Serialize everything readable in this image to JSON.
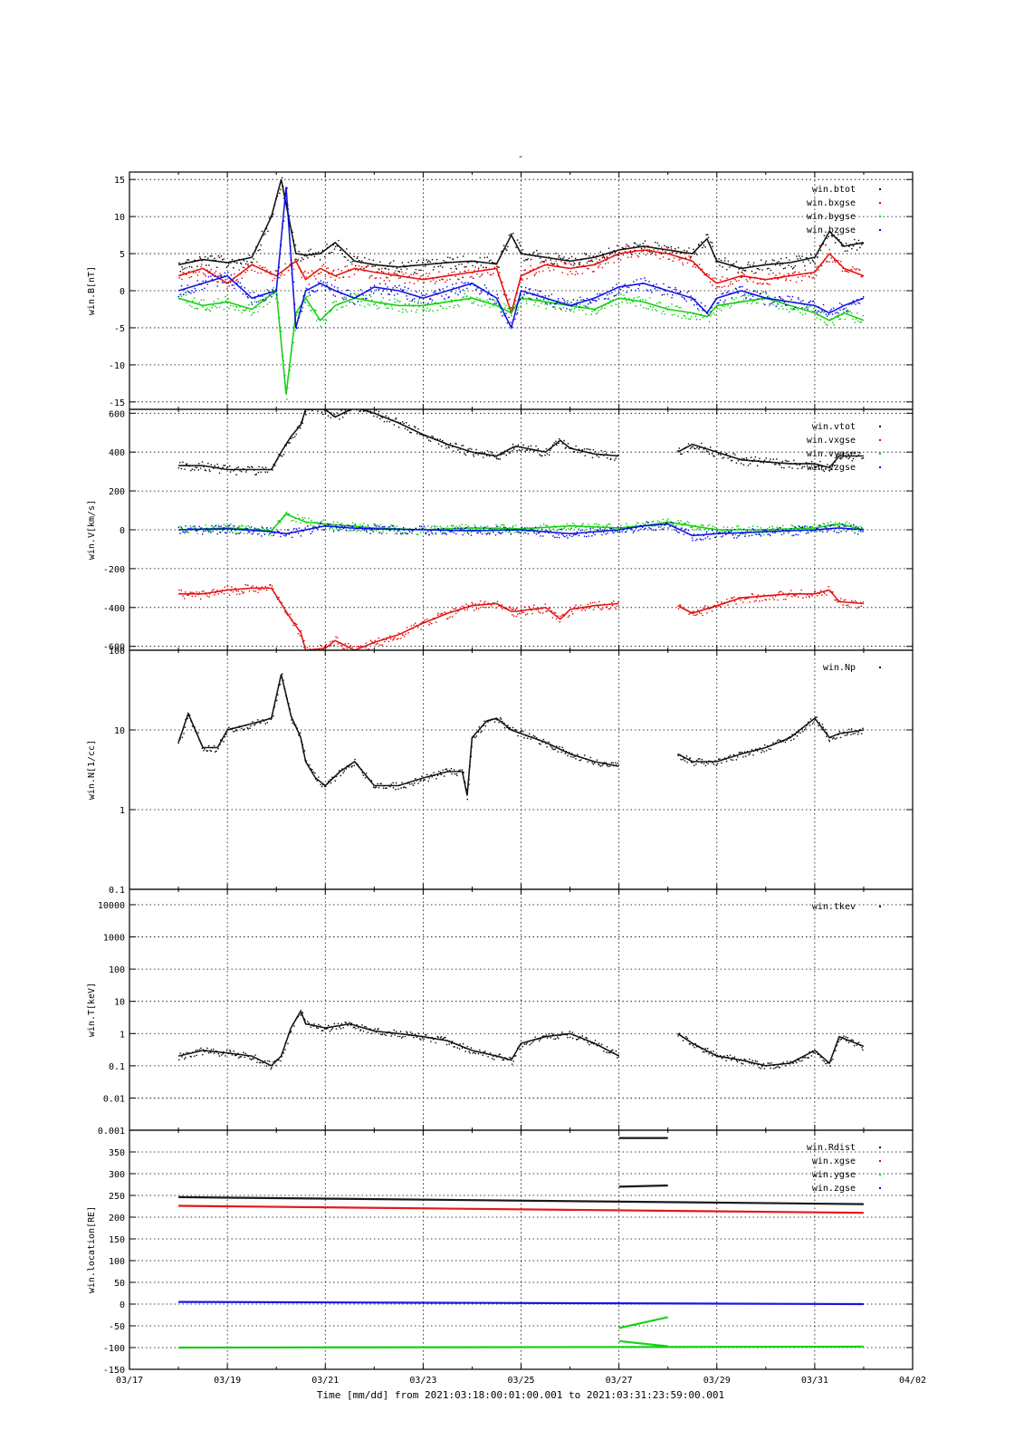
{
  "figure": {
    "title": "-",
    "time_axis_label": "Time [mm/dd]  from 2021:03:18:00:01:00.001  to  2021:03:31:23:59:00.001",
    "x_tick_labels": [
      "03/17",
      "03/19",
      "03/21",
      "03/23",
      "03/25",
      "03/27",
      "03/29",
      "03/31",
      "04/02"
    ]
  },
  "colors": {
    "black": "#000000",
    "red": "#e00000",
    "green": "#00cc00",
    "blue": "#0000e0"
  },
  "chart_data": [
    {
      "type": "scatter",
      "ylabel": "win.B[nT]",
      "x_unit": "days since 03/17 00:00",
      "xlim": [
        0,
        16
      ],
      "ylim": [
        -16,
        16
      ],
      "yticks": [
        15,
        10,
        5,
        0,
        -5,
        -10,
        -15
      ],
      "ytick_labels": [
        "15",
        "10",
        "5",
        "0",
        "-5",
        "-10",
        "-15"
      ],
      "legend": [
        "win.btot",
        "win.bxgse",
        "win.bygse",
        "win.bzgse"
      ],
      "grid": true,
      "series": [
        {
          "name": "win.btot",
          "color": "black",
          "x": [
            1.0,
            1.5,
            2.0,
            2.5,
            2.9,
            3.1,
            3.4,
            3.6,
            3.9,
            4.2,
            4.6,
            5.0,
            5.5,
            6.0,
            6.5,
            7.0,
            7.5,
            7.8,
            8.0,
            8.5,
            9.0,
            9.5,
            10.0,
            10.5,
            11.0,
            11.5,
            11.8,
            12.0,
            12.5,
            13.0,
            13.5,
            14.0,
            14.3,
            14.6,
            15.0
          ],
          "y": [
            3.5,
            4.2,
            3.8,
            4.5,
            10,
            15,
            5,
            4.8,
            5,
            6.5,
            4,
            3.5,
            3.2,
            3.5,
            3.8,
            4,
            3.6,
            7.5,
            5,
            4.5,
            4,
            4.5,
            5.5,
            6,
            5.5,
            5,
            7,
            4,
            3,
            3.5,
            3.8,
            4.5,
            8,
            6,
            6.5
          ]
        },
        {
          "name": "win.bxgse",
          "color": "red",
          "x": [
            1.0,
            1.5,
            2.0,
            2.5,
            3.0,
            3.4,
            3.6,
            3.9,
            4.2,
            4.6,
            5.0,
            5.5,
            6.0,
            6.5,
            7.0,
            7.5,
            7.8,
            8.0,
            8.5,
            9.0,
            9.5,
            10.0,
            10.5,
            11.0,
            11.5,
            11.8,
            12.0,
            12.5,
            13.0,
            13.5,
            14.0,
            14.3,
            14.6,
            15.0
          ],
          "y": [
            2,
            3,
            1,
            3.5,
            2,
            4,
            1.5,
            3,
            2,
            3,
            2.5,
            2,
            1.5,
            2,
            2.5,
            3,
            -3,
            2,
            3.5,
            3,
            3.5,
            5,
            5.5,
            5,
            4,
            2,
            1,
            2,
            1.5,
            2,
            2.5,
            5,
            3,
            2
          ]
        },
        {
          "name": "win.bygse",
          "color": "green",
          "x": [
            1.0,
            1.5,
            2.0,
            2.5,
            3.0,
            3.2,
            3.4,
            3.6,
            3.9,
            4.2,
            4.6,
            5.0,
            5.5,
            6.0,
            6.5,
            7.0,
            7.5,
            7.8,
            8.0,
            8.5,
            9.0,
            9.5,
            10.0,
            10.5,
            11.0,
            11.5,
            11.8,
            12.0,
            12.5,
            13.0,
            13.5,
            14.0,
            14.3,
            14.6,
            15.0
          ],
          "y": [
            -1,
            -2,
            -1.5,
            -2.5,
            0,
            -14,
            -3,
            -1,
            -4,
            -2,
            -1,
            -1.5,
            -2,
            -2,
            -1.5,
            -1,
            -2,
            -3,
            -1,
            -1.5,
            -2,
            -2.5,
            -1,
            -1.5,
            -2.5,
            -3,
            -3.5,
            -2,
            -1.5,
            -1,
            -2,
            -3,
            -4,
            -3,
            -4
          ]
        },
        {
          "name": "win.bzgse",
          "color": "blue",
          "x": [
            1.0,
            1.5,
            2.0,
            2.5,
            3.0,
            3.2,
            3.4,
            3.6,
            3.9,
            4.2,
            4.6,
            5.0,
            5.5,
            6.0,
            6.5,
            7.0,
            7.5,
            7.8,
            8.0,
            8.5,
            9.0,
            9.5,
            10.0,
            10.5,
            11.0,
            11.5,
            11.8,
            12.0,
            12.5,
            13.0,
            13.5,
            14.0,
            14.3,
            14.6,
            15.0
          ],
          "y": [
            0,
            1,
            2,
            -1,
            0,
            14,
            -5,
            0,
            1,
            0,
            -1,
            0.5,
            0,
            -1,
            0,
            1,
            -1,
            -5,
            0,
            -1,
            -2,
            -1,
            0.5,
            1,
            0,
            -1,
            -3,
            -1,
            0,
            -1,
            -1.5,
            -2,
            -3,
            -2,
            -1
          ]
        }
      ]
    },
    {
      "type": "scatter",
      "ylabel": "win.V[km/s]",
      "x_unit": "days since 03/17 00:00",
      "xlim": [
        0,
        16
      ],
      "ylim": [
        -620,
        620
      ],
      "yticks": [
        600,
        400,
        200,
        0,
        -200,
        -400,
        -600
      ],
      "ytick_labels": [
        "600",
        "400",
        "200",
        "0",
        "-200",
        "-400",
        "-600"
      ],
      "legend": [
        "win.vtot",
        "win.vxgse",
        "win.vygse",
        "win.vzgse"
      ],
      "grid": true,
      "series": [
        {
          "name": "win.vtot",
          "color": "black",
          "x": [
            1.0,
            1.5,
            2.0,
            2.5,
            2.9,
            3.1,
            3.3,
            3.5,
            3.6,
            4.0,
            4.2,
            4.6,
            5.0,
            5.5,
            6.0,
            6.5,
            7.0,
            7.5,
            7.8,
            7.9,
            8.5,
            8.8,
            9.0,
            9.5,
            10.0,
            11.0,
            11.2,
            11.5,
            12.0,
            12.5,
            13.0,
            13.5,
            14.0,
            14.3,
            14.5,
            15.0
          ],
          "y": [
            330,
            330,
            310,
            310,
            310,
            400,
            480,
            540,
            620,
            620,
            580,
            630,
            600,
            550,
            490,
            440,
            400,
            380,
            420,
            430,
            400,
            460,
            420,
            390,
            380,
            null,
            400,
            440,
            400,
            360,
            350,
            340,
            340,
            320,
            380,
            380
          ]
        },
        {
          "name": "win.vxgse",
          "color": "red",
          "x": [
            1.0,
            1.5,
            2.0,
            2.5,
            2.9,
            3.1,
            3.3,
            3.5,
            3.6,
            4.0,
            4.2,
            4.6,
            5.0,
            5.5,
            6.0,
            6.5,
            7.0,
            7.5,
            7.8,
            7.9,
            8.5,
            8.8,
            9.0,
            9.5,
            10.0,
            11.0,
            11.2,
            11.5,
            12.0,
            12.5,
            13.0,
            13.5,
            14.0,
            14.3,
            14.5,
            15.0
          ],
          "y": [
            -330,
            -330,
            -310,
            -300,
            -300,
            -380,
            -460,
            -530,
            -620,
            -610,
            -570,
            -620,
            -580,
            -540,
            -480,
            -430,
            -390,
            -380,
            -420,
            -420,
            -400,
            -460,
            -410,
            -390,
            -380,
            null,
            -390,
            -430,
            -390,
            -350,
            -340,
            -330,
            -330,
            -310,
            -370,
            -380
          ]
        },
        {
          "name": "win.vygse",
          "color": "green",
          "x": [
            1.0,
            2.0,
            2.9,
            3.2,
            3.6,
            4.0,
            4.5,
            5.0,
            6.0,
            7.0,
            8.0,
            9.0,
            10.0,
            10.5,
            11.0,
            11.5,
            12.0,
            13.0,
            14.0,
            14.5,
            15.0
          ],
          "y": [
            0,
            10,
            -5,
            80,
            40,
            30,
            20,
            10,
            0,
            10,
            5,
            20,
            10,
            20,
            40,
            20,
            0,
            0,
            10,
            30,
            0
          ]
        },
        {
          "name": "win.vzgse",
          "color": "blue",
          "x": [
            1.0,
            2.0,
            2.9,
            3.2,
            3.6,
            4.0,
            4.5,
            5.0,
            6.0,
            7.0,
            8.0,
            9.0,
            10.0,
            10.5,
            11.0,
            11.5,
            12.0,
            13.0,
            14.0,
            14.5,
            15.0
          ],
          "y": [
            0,
            5,
            -10,
            -20,
            0,
            20,
            10,
            5,
            0,
            -5,
            0,
            -20,
            0,
            20,
            30,
            -30,
            -20,
            -10,
            0,
            10,
            0
          ]
        }
      ]
    },
    {
      "type": "scatter",
      "ylabel": "win.N[1/cc]",
      "x_unit": "days since 03/17 00:00",
      "xlim": [
        0,
        16
      ],
      "yscale": "log",
      "ylim": [
        0.1,
        100
      ],
      "yticks": [
        100,
        10,
        1,
        0.1
      ],
      "ytick_labels": [
        "100",
        "10",
        "1",
        "0.1"
      ],
      "legend": [
        "win.Np"
      ],
      "grid": true,
      "series": [
        {
          "name": "win.Np",
          "color": "black",
          "x": [
            1.0,
            1.2,
            1.5,
            1.8,
            2.0,
            2.5,
            2.9,
            3.1,
            3.3,
            3.5,
            3.6,
            3.8,
            4.0,
            4.3,
            4.6,
            5.0,
            5.5,
            6.0,
            6.5,
            6.8,
            6.9,
            7.0,
            7.3,
            7.5,
            7.8,
            8.0,
            8.5,
            9.0,
            9.5,
            10.0,
            11.0,
            11.2,
            11.5,
            12.0,
            12.5,
            13.0,
            13.5,
            14.0,
            14.3,
            14.5,
            15.0
          ],
          "y": [
            7,
            16,
            6,
            6,
            10,
            12,
            14,
            50,
            15,
            8,
            4,
            2.5,
            2,
            3,
            4,
            2,
            2,
            2.5,
            3,
            3,
            1.5,
            8,
            13,
            14,
            10,
            9,
            7,
            5,
            4,
            3.5,
            null,
            5,
            4,
            4,
            5,
            6,
            8,
            14,
            8,
            9,
            10
          ]
        }
      ]
    },
    {
      "type": "scatter",
      "ylabel": "win.T[keV]",
      "x_unit": "days since 03/17 00:00",
      "xlim": [
        0,
        16
      ],
      "yscale": "log",
      "ylim": [
        0.001,
        30000
      ],
      "yticks": [
        10000,
        1000,
        100,
        10,
        1,
        0.1,
        0.01,
        0.001
      ],
      "ytick_labels": [
        "10000",
        "1000",
        "100",
        "10",
        "1",
        "0.1",
        "0.01",
        "0.001"
      ],
      "legend": [
        "win.tkev"
      ],
      "grid": true,
      "series": [
        {
          "name": "win.tkev",
          "color": "black",
          "x": [
            1.0,
            1.5,
            2.0,
            2.5,
            2.9,
            3.1,
            3.3,
            3.5,
            3.6,
            4.0,
            4.5,
            5.0,
            5.5,
            6.0,
            6.5,
            7.0,
            7.5,
            7.8,
            8.0,
            8.5,
            9.0,
            9.5,
            10.0,
            11.0,
            11.2,
            11.5,
            12.0,
            12.5,
            13.0,
            13.5,
            14.0,
            14.3,
            14.5,
            15.0
          ],
          "y": [
            0.2,
            0.3,
            0.25,
            0.2,
            0.1,
            0.2,
            1.5,
            5,
            2,
            1.5,
            2,
            1.2,
            1,
            0.8,
            0.6,
            0.3,
            0.2,
            0.15,
            0.5,
            0.8,
            1,
            0.5,
            0.2,
            null,
            1,
            0.5,
            0.2,
            0.15,
            0.1,
            0.12,
            0.3,
            0.12,
            0.8,
            0.4
          ]
        }
      ]
    },
    {
      "type": "scatter",
      "ylabel": "win.location[RE]",
      "x_unit": "days since 03/17 00:00",
      "xlim": [
        0,
        16
      ],
      "ylim": [
        -150,
        400
      ],
      "yticks": [
        350,
        300,
        250,
        200,
        150,
        100,
        50,
        0,
        -50,
        -100,
        -150
      ],
      "ytick_labels": [
        "350",
        "300",
        "250",
        "200",
        "150",
        "100",
        "50",
        "0",
        "-50",
        "-100",
        "-150"
      ],
      "legend": [
        "win.Rdist",
        "win.xgse",
        "win.ygse",
        "win.zgse"
      ],
      "grid": true,
      "series": [
        {
          "name": "win.Rdist",
          "color": "black",
          "x": [
            1.0,
            15.0
          ],
          "y": [
            246,
            230
          ]
        },
        {
          "name": "win.xgse",
          "color": "red",
          "x": [
            1.0,
            15.0
          ],
          "y": [
            226,
            210
          ]
        },
        {
          "name": "win.ygse",
          "color": "green",
          "x": [
            1.0,
            15.0
          ],
          "y": [
            -100,
            -98
          ]
        },
        {
          "name": "win.zgse",
          "color": "blue",
          "x": [
            1.0,
            15.0
          ],
          "y": [
            5,
            0
          ]
        },
        {
          "name": "",
          "color": "black",
          "x": [
            10.0,
            11.0
          ],
          "y": [
            382,
            382
          ]
        },
        {
          "name": "",
          "color": "black",
          "x": [
            10.0,
            11.0
          ],
          "y": [
            270,
            273
          ]
        },
        {
          "name": "",
          "color": "green",
          "x": [
            10.0,
            11.0
          ],
          "y": [
            -55,
            -30
          ]
        },
        {
          "name": "",
          "color": "green",
          "x": [
            10.0,
            11.0
          ],
          "y": [
            -85,
            -97
          ]
        }
      ]
    }
  ]
}
